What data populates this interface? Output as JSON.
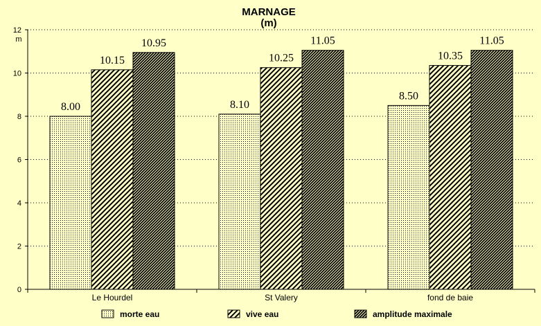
{
  "chart_data": {
    "type": "bar",
    "title": "MARNAGE",
    "subtitle": "(m)",
    "ylabel": "m",
    "xlabel": "",
    "ylim": [
      0,
      12
    ],
    "yticks": [
      0,
      2,
      4,
      6,
      8,
      10,
      12
    ],
    "grid": true,
    "legend_position": "bottom",
    "categories": [
      "Le Hourdel",
      "St Valery",
      "fond de baie"
    ],
    "series": [
      {
        "name": "morte eau",
        "values": [
          8.0,
          8.1,
          8.5
        ],
        "labels": [
          "8.00",
          "8.10",
          "8.50"
        ]
      },
      {
        "name": "vive eau",
        "values": [
          10.15,
          10.25,
          10.35
        ],
        "labels": [
          "10.15",
          "10.25",
          "10.35"
        ]
      },
      {
        "name": "amplitude maximale",
        "values": [
          10.95,
          11.05,
          11.05
        ],
        "labels": [
          "10.95",
          "11.05",
          "11.05"
        ]
      }
    ],
    "colors": {
      "background": "#ffffc8",
      "grid": "#000000"
    }
  }
}
